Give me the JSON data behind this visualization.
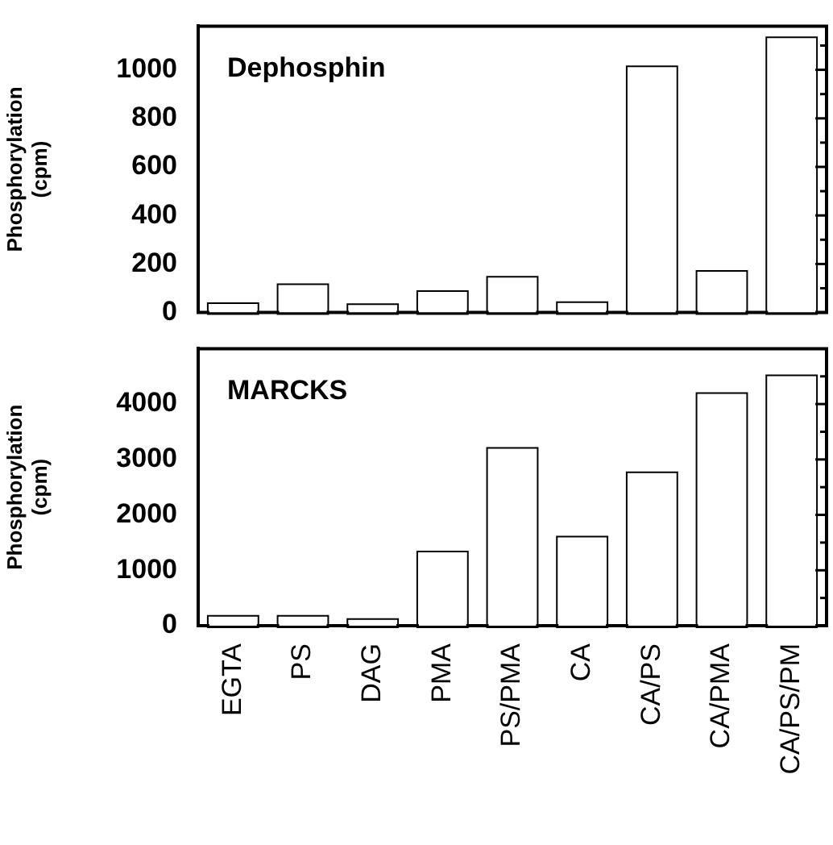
{
  "chart_data": [
    {
      "type": "bar",
      "ylabel": "Phosphorylation (cpm)",
      "annotations": [
        "Dephosphin"
      ],
      "categories": [
        null,
        null,
        null,
        null,
        null,
        null,
        null,
        null,
        null
      ],
      "values": [
        32,
        110,
        28,
        82,
        141,
        36,
        1008,
        165,
        1127
      ],
      "color": "#ffffff",
      "ylim": [
        0,
        1180
      ],
      "yticks": [
        0,
        {
          "value": 100,
          "label": null
        },
        200,
        {
          "value": 300,
          "label": null
        },
        400,
        {
          "value": 500,
          "label": null
        },
        600,
        {
          "value": 700,
          "label": null
        },
        800,
        {
          "value": 900,
          "label": null
        },
        1000,
        {
          "value": 1100,
          "label": null
        }
      ],
      "tick_labels": "y",
      "grid": false,
      "legend": false
    },
    {
      "type": "bar",
      "ylabel": "Phosphorylation (cpm)",
      "annotations": [
        "MARCKS"
      ],
      "categories": [
        "EGTA",
        "PS",
        "DAG",
        "PMA",
        "PS/PMA",
        "CA",
        "CA/PS",
        "CA/PMA",
        "CA/PS/PM"
      ],
      "values": [
        150,
        150,
        90,
        1310,
        3180,
        1580,
        2740,
        4170,
        4490
      ],
      "color": "#ffffff",
      "ylim": [
        0,
        5000
      ],
      "yticks": [
        0,
        {
          "value": 500,
          "label": null
        },
        1000,
        {
          "value": 1500,
          "label": null
        },
        2000,
        {
          "value": 2500,
          "label": null
        },
        3000,
        {
          "value": 3500,
          "label": null
        },
        4000,
        {
          "value": 4500,
          "label": null
        }
      ],
      "grid": false,
      "legend": false
    }
  ]
}
